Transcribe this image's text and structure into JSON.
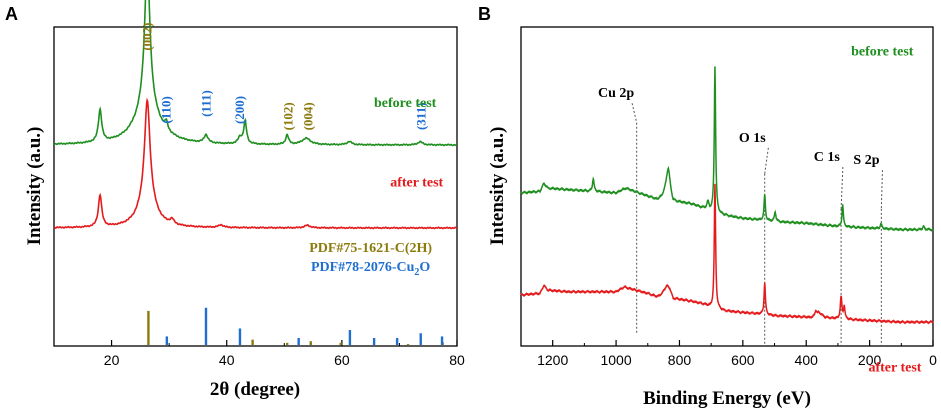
{
  "colors": {
    "green": "#1f8f1f",
    "red": "#e41a1c",
    "olive": "#8c7a0c",
    "blue": "#1f6fd1",
    "black": "#000000",
    "guide": "#555555"
  },
  "chart_data": [
    {
      "type": "line",
      "panel_label": "A",
      "xlabel": "2θ (degree)",
      "ylabel": "Intensity (a.u.)",
      "xlim": [
        10,
        80
      ],
      "ylim": [
        0,
        100
      ],
      "xticks": [
        20,
        40,
        60,
        80
      ],
      "xtick_labels": [
        "20",
        "40",
        "60",
        "80"
      ],
      "series": [
        {
          "name": "before test",
          "color": "#1f8f1f",
          "baseline": 63,
          "peaks": [
            {
              "x": 18.0,
              "h": 10,
              "w": 0.35
            },
            {
              "x": 26.2,
              "h": 45,
              "w": 0.55
            },
            {
              "x": 26.2,
              "h": 12,
              "w": 2.5
            },
            {
              "x": 29.5,
              "h": 2.5,
              "w": 0.3
            },
            {
              "x": 36.4,
              "h": 2.5,
              "w": 0.4
            },
            {
              "x": 42.3,
              "h": 2,
              "w": 0.4
            },
            {
              "x": 43.2,
              "h": 7,
              "w": 0.3
            },
            {
              "x": 50.5,
              "h": 3,
              "w": 0.3
            },
            {
              "x": 53.8,
              "h": 2,
              "w": 0.9
            },
            {
              "x": 61.3,
              "h": 1,
              "w": 0.5
            },
            {
              "x": 73.6,
              "h": 1,
              "w": 0.5
            }
          ]
        },
        {
          "name": "after test",
          "color": "#e41a1c",
          "baseline": 37,
          "peaks": [
            {
              "x": 18.0,
              "h": 10,
              "w": 0.35
            },
            {
              "x": 26.2,
              "h": 30,
              "w": 0.55
            },
            {
              "x": 26.2,
              "h": 10,
              "w": 1.6
            },
            {
              "x": 30.5,
              "h": 1.5,
              "w": 0.4
            },
            {
              "x": 39.0,
              "h": 0.8,
              "w": 0.5
            },
            {
              "x": 54.0,
              "h": 0.8,
              "w": 0.6
            }
          ]
        }
      ],
      "references": [
        {
          "name": "PDF#75-1621-C(2H)",
          "color": "#8c7a0c",
          "sticks": [
            [
              26.4,
              11
            ],
            [
              44.5,
              2
            ],
            [
              50.5,
              1
            ],
            [
              54.6,
              1.5
            ],
            [
              59.8,
              1
            ],
            [
              71.5,
              0.6
            ],
            [
              77.5,
              1.2
            ]
          ]
        },
        {
          "name_main": "PDF#78-2076-Cu",
          "name_sub": "2",
          "name_end": "O",
          "color": "#1f6fd1",
          "sticks": [
            [
              29.6,
              3
            ],
            [
              36.4,
              12
            ],
            [
              42.3,
              5.5
            ],
            [
              52.5,
              2.5
            ],
            [
              61.4,
              5
            ],
            [
              65.6,
              2.5
            ],
            [
              69.6,
              2.5
            ],
            [
              73.7,
              4
            ],
            [
              77.4,
              3
            ]
          ]
        }
      ],
      "annotations": [
        {
          "text": "(002)",
          "x": 26.2,
          "y": 97,
          "color": "#8c7a0c"
        },
        {
          "text": "(110)",
          "x": 29.5,
          "y": 74,
          "color": "#1f6fd1"
        },
        {
          "text": "(111)",
          "x": 36.5,
          "y": 76,
          "color": "#1f6fd1"
        },
        {
          "text": "(200)",
          "x": 42.3,
          "y": 74,
          "color": "#1f6fd1"
        },
        {
          "text": "(102)",
          "x": 50.7,
          "y": 72,
          "color": "#8c7a0c"
        },
        {
          "text": "(004)",
          "x": 54.2,
          "y": 72,
          "color": "#8c7a0c"
        },
        {
          "text": "(311)",
          "x": 73.8,
          "y": 72,
          "color": "#1f6fd1"
        }
      ],
      "series_labels": [
        {
          "text": "before test",
          "x": 71,
          "y": 75,
          "color": "#1f8f1f"
        },
        {
          "text": "after test",
          "x": 73,
          "y": 50,
          "color": "#e41a1c"
        }
      ],
      "reference_labels": [
        {
          "x": 65,
          "y": 29.5
        },
        {
          "x": 65,
          "y": 23.5
        }
      ]
    },
    {
      "type": "line",
      "panel_label": "B",
      "xlabel": "Binding Energy (eV)",
      "ylabel": "Intensity (a.u.)",
      "xlim": [
        1300,
        0
      ],
      "ylim": [
        0,
        100
      ],
      "xticks": [
        1200,
        1000,
        800,
        600,
        400,
        200,
        0
      ],
      "xtick_labels": [
        "1200",
        "1000",
        "800",
        "600",
        "400",
        "200",
        "0"
      ],
      "series": [
        {
          "name": "before test",
          "color": "#1f8f1f",
          "knots": [
            [
              1300,
              48
            ],
            [
              1240,
              48.5
            ],
            [
              1228,
              51
            ],
            [
              1215,
              49.5
            ],
            [
              1150,
              49
            ],
            [
              1000,
              48
            ],
            [
              970,
              49.5
            ],
            [
              900,
              47
            ],
            [
              870,
              46
            ],
            [
              855,
              47
            ],
            [
              840,
              50.5
            ],
            [
              830,
              49
            ],
            [
              820,
              45.5
            ],
            [
              760,
              44.5
            ],
            [
              720,
              43
            ],
            [
              700,
              42
            ],
            [
              660,
              41
            ],
            [
              600,
              40
            ],
            [
              540,
              39.5
            ],
            [
              500,
              39
            ],
            [
              400,
              38.5
            ],
            [
              300,
              37.5
            ],
            [
              200,
              37
            ],
            [
              100,
              36.5
            ],
            [
              0,
              36.5
            ]
          ],
          "peaks": [
            {
              "x": 1072,
              "h": 4,
              "w": 3
            },
            {
              "x": 835,
              "h": 6,
              "w": 5
            },
            {
              "x": 688,
              "h": 46,
              "w": 2.5
            },
            {
              "x": 710,
              "h": 2.5,
              "w": 4
            },
            {
              "x": 531,
              "h": 8,
              "w": 2.5
            },
            {
              "x": 498,
              "h": 3,
              "w": 3
            },
            {
              "x": 285,
              "h": 7,
              "w": 2.5
            },
            {
              "x": 164,
              "h": 1.5,
              "w": 3
            },
            {
              "x": 30,
              "h": 1,
              "w": 3
            }
          ]
        },
        {
          "name": "after test",
          "color": "#e41a1c",
          "knots": [
            [
              1300,
              16
            ],
            [
              1240,
              16.5
            ],
            [
              1228,
              19
            ],
            [
              1215,
              17.5
            ],
            [
              1150,
              17
            ],
            [
              1000,
              17
            ],
            [
              975,
              18.5
            ],
            [
              900,
              16.5
            ],
            [
              870,
              15.5
            ],
            [
              855,
              16.5
            ],
            [
              840,
              19
            ],
            [
              830,
              18
            ],
            [
              820,
              15
            ],
            [
              760,
              14
            ],
            [
              720,
              13
            ],
            [
              700,
              12
            ],
            [
              660,
              11
            ],
            [
              600,
              10.5
            ],
            [
              540,
              10
            ],
            [
              500,
              9.5
            ],
            [
              380,
              9
            ],
            [
              360,
              10.5
            ],
            [
              340,
              9
            ],
            [
              300,
              8.5
            ],
            [
              200,
              8
            ],
            [
              100,
              7.5
            ],
            [
              0,
              7.5
            ]
          ],
          "peaks": [
            {
              "x": 688,
              "h": 39,
              "w": 2.5
            },
            {
              "x": 531,
              "h": 10,
              "w": 2.5
            },
            {
              "x": 370,
              "h": 1.5,
              "w": 3
            },
            {
              "x": 290,
              "h": 7,
              "w": 3
            },
            {
              "x": 280,
              "h": 4,
              "w": 2.5
            }
          ]
        }
      ],
      "guides": [
        {
          "text": "Cu 2p",
          "label_x": 1000,
          "label_y": 78,
          "x": 935,
          "y_top": 70,
          "y_bottom": 4
        },
        {
          "text": "O 1s",
          "label_x": 570,
          "label_y": 64,
          "x": 531,
          "y_top": 54,
          "y_bottom": 0
        },
        {
          "text": "C 1s",
          "label_x": 335,
          "label_y": 58,
          "x": 290,
          "y_top": 43,
          "y_bottom": 0
        },
        {
          "text": "S 2p",
          "label_x": 210,
          "label_y": 57,
          "x": 163,
          "y_top": 43,
          "y_bottom": 0
        }
      ],
      "series_labels": [
        {
          "text": "before test",
          "x": 160,
          "y": 91,
          "color": "#1f8f1f"
        },
        {
          "text": "after test",
          "x": 120,
          "y": -8,
          "color": "#e41a1c"
        }
      ]
    }
  ]
}
